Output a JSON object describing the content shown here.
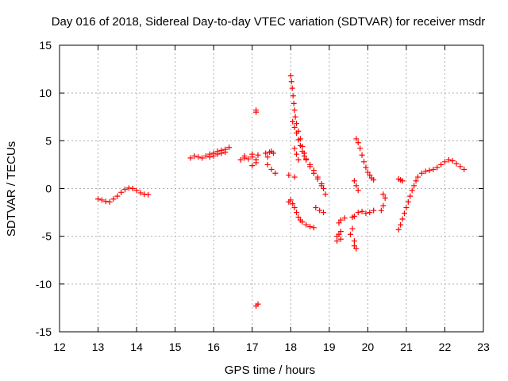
{
  "chart_data": {
    "type": "scatter",
    "title": "Day 016 of 2018, Sidereal Day-to-day VTEC variation (SDTVAR) for receiver msdr",
    "xlabel": "GPS time / hours",
    "ylabel": "SDTVAR / TECUs",
    "xlim": [
      12,
      23
    ],
    "ylim": [
      -15,
      15
    ],
    "xticks": [
      12,
      13,
      14,
      15,
      16,
      17,
      18,
      19,
      20,
      21,
      22,
      23
    ],
    "yticks": [
      -15,
      -10,
      -5,
      0,
      5,
      10,
      15
    ],
    "grid": true,
    "marker": "plus",
    "series_color": "#ff0000",
    "series": [
      {
        "name": "msdr",
        "points": [
          [
            13.0,
            -1.1
          ],
          [
            13.1,
            -1.2
          ],
          [
            13.2,
            -1.35
          ],
          [
            13.3,
            -1.4
          ],
          [
            13.4,
            -1.1
          ],
          [
            13.5,
            -0.8
          ],
          [
            13.6,
            -0.4
          ],
          [
            13.7,
            -0.1
          ],
          [
            13.8,
            0.05
          ],
          [
            13.9,
            0.0
          ],
          [
            14.0,
            -0.2
          ],
          [
            14.1,
            -0.45
          ],
          [
            14.2,
            -0.6
          ],
          [
            14.3,
            -0.65
          ],
          [
            15.4,
            3.2
          ],
          [
            15.5,
            3.4
          ],
          [
            15.6,
            3.3
          ],
          [
            15.7,
            3.2
          ],
          [
            15.8,
            3.4
          ],
          [
            15.9,
            3.6
          ],
          [
            16.0,
            3.7
          ],
          [
            16.1,
            3.9
          ],
          [
            16.2,
            4.0
          ],
          [
            16.3,
            4.1
          ],
          [
            16.4,
            4.3
          ],
          [
            15.9,
            3.3
          ],
          [
            16.0,
            3.4
          ],
          [
            16.1,
            3.6
          ],
          [
            16.2,
            3.7
          ],
          [
            16.3,
            3.8
          ],
          [
            16.7,
            3.0
          ],
          [
            16.8,
            3.2
          ],
          [
            16.9,
            3.1
          ],
          [
            17.0,
            3.3
          ],
          [
            17.1,
            3.0
          ],
          [
            16.8,
            3.4
          ],
          [
            17.0,
            3.6
          ],
          [
            17.1,
            2.7
          ],
          [
            17.0,
            2.4
          ],
          [
            17.15,
            3.5
          ],
          [
            17.1,
            8.0
          ],
          [
            17.1,
            8.2
          ],
          [
            17.1,
            -12.3
          ],
          [
            17.15,
            -12.1
          ],
          [
            17.35,
            3.7
          ],
          [
            17.4,
            3.3
          ],
          [
            17.45,
            3.8
          ],
          [
            17.5,
            3.9
          ],
          [
            17.55,
            3.7
          ],
          [
            17.4,
            2.5
          ],
          [
            17.5,
            2.0
          ],
          [
            17.6,
            1.6
          ],
          [
            17.95,
            1.4
          ],
          [
            18.1,
            1.2
          ],
          [
            18.0,
            11.8
          ],
          [
            18.02,
            11.2
          ],
          [
            18.04,
            10.5
          ],
          [
            18.06,
            9.7
          ],
          [
            18.08,
            8.9
          ],
          [
            18.1,
            8.2
          ],
          [
            18.12,
            7.5
          ],
          [
            18.15,
            6.8
          ],
          [
            18.2,
            6.0
          ],
          [
            18.25,
            5.2
          ],
          [
            18.3,
            4.4
          ],
          [
            18.35,
            3.7
          ],
          [
            18.4,
            3.1
          ],
          [
            18.5,
            2.5
          ],
          [
            18.6,
            1.9
          ],
          [
            18.7,
            1.2
          ],
          [
            18.8,
            0.5
          ],
          [
            18.85,
            0.0
          ],
          [
            18.9,
            -0.6
          ],
          [
            18.05,
            7.0
          ],
          [
            18.1,
            6.4
          ],
          [
            18.15,
            5.8
          ],
          [
            18.2,
            5.1
          ],
          [
            18.25,
            4.5
          ],
          [
            18.3,
            3.9
          ],
          [
            18.35,
            3.4
          ],
          [
            18.4,
            3.0
          ],
          [
            18.5,
            2.3
          ],
          [
            18.6,
            1.6
          ],
          [
            18.7,
            1.0
          ],
          [
            18.8,
            0.3
          ],
          [
            18.1,
            4.2
          ],
          [
            18.15,
            3.6
          ],
          [
            18.2,
            3.0
          ],
          [
            17.95,
            -1.4
          ],
          [
            18.0,
            -1.2
          ],
          [
            18.05,
            -1.6
          ],
          [
            18.1,
            -2.0
          ],
          [
            18.15,
            -2.5
          ],
          [
            18.2,
            -3.0
          ],
          [
            18.25,
            -3.3
          ],
          [
            18.3,
            -3.5
          ],
          [
            18.4,
            -3.8
          ],
          [
            18.5,
            -4.0
          ],
          [
            18.6,
            -4.1
          ],
          [
            18.65,
            -2.0
          ],
          [
            18.75,
            -2.3
          ],
          [
            18.85,
            -2.5
          ],
          [
            19.2,
            -5.0
          ],
          [
            19.3,
            -4.5
          ],
          [
            19.2,
            -5.5
          ],
          [
            19.3,
            -5.3
          ],
          [
            19.25,
            -3.6
          ],
          [
            19.3,
            -3.3
          ],
          [
            19.4,
            -3.1
          ],
          [
            19.25,
            -4.8
          ],
          [
            19.55,
            -4.8
          ],
          [
            19.6,
            -4.2
          ],
          [
            19.65,
            -5.5
          ],
          [
            19.65,
            -6.0
          ],
          [
            19.7,
            -6.3
          ],
          [
            19.6,
            -3.0
          ],
          [
            19.65,
            -2.9
          ],
          [
            19.7,
            5.2
          ],
          [
            19.75,
            4.8
          ],
          [
            19.8,
            4.2
          ],
          [
            19.85,
            3.5
          ],
          [
            19.9,
            2.8
          ],
          [
            19.95,
            2.2
          ],
          [
            20.0,
            1.7
          ],
          [
            20.05,
            1.4
          ],
          [
            20.1,
            1.1
          ],
          [
            20.15,
            0.9
          ],
          [
            19.65,
            0.8
          ],
          [
            19.7,
            0.3
          ],
          [
            19.75,
            -0.2
          ],
          [
            19.75,
            -2.5
          ],
          [
            19.85,
            -2.4
          ],
          [
            19.95,
            -2.6
          ],
          [
            20.05,
            -2.5
          ],
          [
            20.15,
            -2.3
          ],
          [
            20.35,
            -2.3
          ],
          [
            20.4,
            -1.8
          ],
          [
            20.45,
            -1.0
          ],
          [
            20.4,
            -0.6
          ],
          [
            20.8,
            1.0
          ],
          [
            20.85,
            0.9
          ],
          [
            20.9,
            0.8
          ],
          [
            20.8,
            -4.3
          ],
          [
            20.85,
            -3.8
          ],
          [
            20.9,
            -3.2
          ],
          [
            20.95,
            -2.6
          ],
          [
            21.0,
            -2.0
          ],
          [
            21.05,
            -1.4
          ],
          [
            21.1,
            -0.8
          ],
          [
            21.15,
            -0.2
          ],
          [
            21.2,
            0.3
          ],
          [
            21.25,
            0.8
          ],
          [
            21.3,
            1.2
          ],
          [
            21.4,
            1.6
          ],
          [
            21.5,
            1.8
          ],
          [
            21.6,
            1.9
          ],
          [
            21.7,
            2.0
          ],
          [
            21.8,
            2.2
          ],
          [
            21.9,
            2.5
          ],
          [
            22.0,
            2.8
          ],
          [
            22.1,
            3.0
          ],
          [
            22.2,
            2.9
          ],
          [
            22.3,
            2.6
          ],
          [
            22.4,
            2.3
          ],
          [
            22.5,
            2.0
          ]
        ]
      }
    ]
  }
}
